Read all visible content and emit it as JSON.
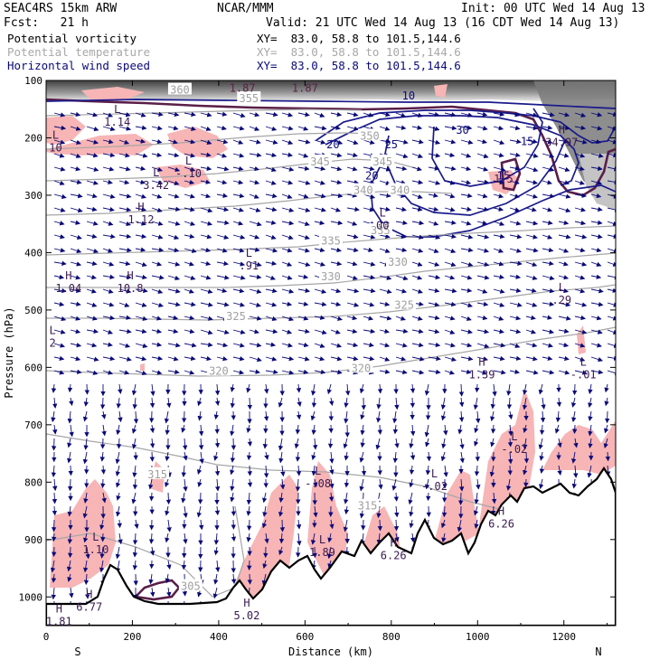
{
  "header": {
    "model": "SEAC4RS 15km ARW",
    "org": "NCAR/MMM",
    "init": "Init: 00 UTC Wed 14 Aug 13",
    "fcst": "Fcst:   21 h",
    "valid": "Valid: 21 UTC Wed 14 Aug 13 (16 CDT Wed 14 Aug 13)"
  },
  "legend": [
    {
      "name": "Potential vorticity",
      "xy": "XY=  83.0, 58.8 to 101.5,144.6",
      "color": "#000000"
    },
    {
      "name": "Potential temperature",
      "xy": "XY=  83.0, 58.8 to 101.5,144.6",
      "color": "#a8a8a8"
    },
    {
      "name": "Horizontal wind speed",
      "xy": "XY=  83.0, 58.8 to 101.5,144.6",
      "color": "#0a0a78"
    }
  ],
  "chart_data": {
    "type": "cross-section",
    "xlabel": "Distance (km)",
    "ylabel": "Pressure (hPa)",
    "xlim": [
      0,
      1320
    ],
    "ylim": [
      1050,
      100
    ],
    "xticks": [
      0,
      200,
      400,
      600,
      800,
      1000,
      1200
    ],
    "yticks": [
      100,
      200,
      300,
      400,
      500,
      600,
      700,
      800,
      900,
      1000
    ],
    "endpoints": {
      "left": "S",
      "right": "N"
    },
    "theta_contours": [
      {
        "label": "305",
        "x": 335,
        "p": 980
      },
      {
        "label": "315",
        "x": 258,
        "p": 785
      },
      {
        "label": "315",
        "x": 745,
        "p": 840
      },
      {
        "label": "320",
        "x": 400,
        "p": 605
      },
      {
        "label": "320",
        "x": 730,
        "p": 600
      },
      {
        "label": "325",
        "x": 440,
        "p": 510
      },
      {
        "label": "325",
        "x": 830,
        "p": 490
      },
      {
        "label": "330",
        "x": 660,
        "p": 440
      },
      {
        "label": "330",
        "x": 815,
        "p": 415
      },
      {
        "label": "335",
        "x": 660,
        "p": 378
      },
      {
        "label": "335",
        "x": 775,
        "p": 360
      },
      {
        "label": "340",
        "x": 735,
        "p": 290
      },
      {
        "label": "340",
        "x": 820,
        "p": 290
      },
      {
        "label": "345",
        "x": 635,
        "p": 240
      },
      {
        "label": "345",
        "x": 780,
        "p": 240
      },
      {
        "label": "350",
        "x": 750,
        "p": 195
      },
      {
        "label": "355",
        "x": 470,
        "p": 130
      },
      {
        "label": "360",
        "x": 310,
        "p": 115
      }
    ],
    "wind_speed_contours": [
      {
        "label": "20",
        "x": 665,
        "p": 210
      },
      {
        "label": "20",
        "x": 755,
        "p": 265
      },
      {
        "label": "25",
        "x": 800,
        "p": 210
      },
      {
        "label": "30",
        "x": 965,
        "p": 185
      },
      {
        "label": "15",
        "x": 1115,
        "p": 205
      },
      {
        "label": "15",
        "x": 1060,
        "p": 265
      },
      {
        "label": "10",
        "x": 840,
        "p": 125
      }
    ],
    "pv_contour_labels": [
      {
        "label": "1.87",
        "x": 455,
        "p": 112
      },
      {
        "label": "1.87",
        "x": 600,
        "p": 112
      },
      {
        "label": "1.5",
        "x": 1060,
        "p": 270
      }
    ],
    "extrema": [
      {
        "type": "L",
        "value": "1.14",
        "x": 165,
        "p": 160
      },
      {
        "type": "L",
        "value": "10",
        "x": 22,
        "p": 205
      },
      {
        "type": "L",
        "value": "3.42",
        "x": 255,
        "p": 270
      },
      {
        "type": "L",
        "value": "-.10",
        "x": 330,
        "p": 250
      },
      {
        "type": "H",
        "value": "1.12",
        "x": 220,
        "p": 330
      },
      {
        "type": "L",
        "value": "00",
        "x": 780,
        "p": 340
      },
      {
        "type": "L",
        "value": ".91",
        "x": 470,
        "p": 410
      },
      {
        "type": "H",
        "value": "1.04",
        "x": 52,
        "p": 450
      },
      {
        "type": "H",
        "value": "10.8",
        "x": 195,
        "p": 450
      },
      {
        "type": "L",
        "value": ".29",
        "x": 1195,
        "p": 470
      },
      {
        "type": "L",
        "value": "2",
        "x": 15,
        "p": 545
      },
      {
        "type": "H",
        "value": "1.39",
        "x": 1010,
        "p": 600
      },
      {
        "type": "L",
        "value": "-.01",
        "x": 1245,
        "p": 600
      },
      {
        "type": "L",
        "value": "-.02",
        "x": 1085,
        "p": 730
      },
      {
        "type": "L",
        "value": "-.08",
        "x": 630,
        "p": 790
      },
      {
        "type": "L",
        "value": "-.02",
        "x": 900,
        "p": 795
      },
      {
        "type": "H",
        "value": "34.97",
        "x": 1195,
        "p": 195
      },
      {
        "type": "H",
        "value": "6.26",
        "x": 1055,
        "p": 860
      },
      {
        "type": "L",
        "value": "1.10",
        "x": 115,
        "p": 905
      },
      {
        "type": "L",
        "value": "1.89",
        "x": 640,
        "p": 910
      },
      {
        "type": "H",
        "value": "6.26",
        "x": 805,
        "p": 915
      },
      {
        "type": "H",
        "value": "6.77",
        "x": 100,
        "p": 1005
      },
      {
        "type": "H",
        "value": "1.81",
        "x": 30,
        "p": 1030
      },
      {
        "type": "H",
        "value": "5.02",
        "x": 465,
        "p": 1020
      }
    ]
  }
}
